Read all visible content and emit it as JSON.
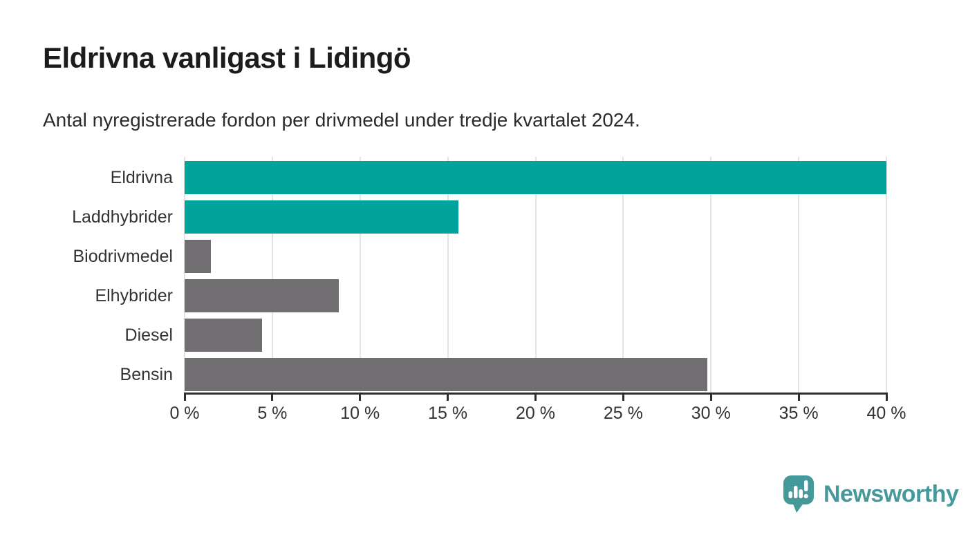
{
  "chart_data": {
    "type": "bar",
    "orientation": "horizontal",
    "title": "Eldrivna vanligast i Lidingö",
    "subtitle": "Antal nyregistrerade fordon per drivmedel under tredje kvartalet 2024.",
    "categories": [
      "Eldrivna",
      "Laddhybrider",
      "Biodrivmedel",
      "Elhybrider",
      "Diesel",
      "Bensin"
    ],
    "values": [
      40.0,
      15.6,
      1.5,
      8.8,
      4.4,
      29.8
    ],
    "unit": "%",
    "xlabel": "",
    "ylabel": "",
    "xlim": [
      0,
      40
    ],
    "x_ticks": [
      "0 %",
      "5 %",
      "10 %",
      "15 %",
      "20 %",
      "25 %",
      "30 %",
      "35 %",
      "40 %"
    ],
    "grid": true,
    "legend": false,
    "bar_colors": [
      "#00a49b",
      "#00a49b",
      "#716e72",
      "#716e72",
      "#716e72",
      "#716e72"
    ],
    "highlight_color": "#00a49b",
    "default_color": "#716e72",
    "gridline_color": "#e3e3e3",
    "axis_color": "#2d2d2d"
  },
  "footer": {
    "brand": "Newsworthy",
    "brand_color": "#46999a"
  }
}
